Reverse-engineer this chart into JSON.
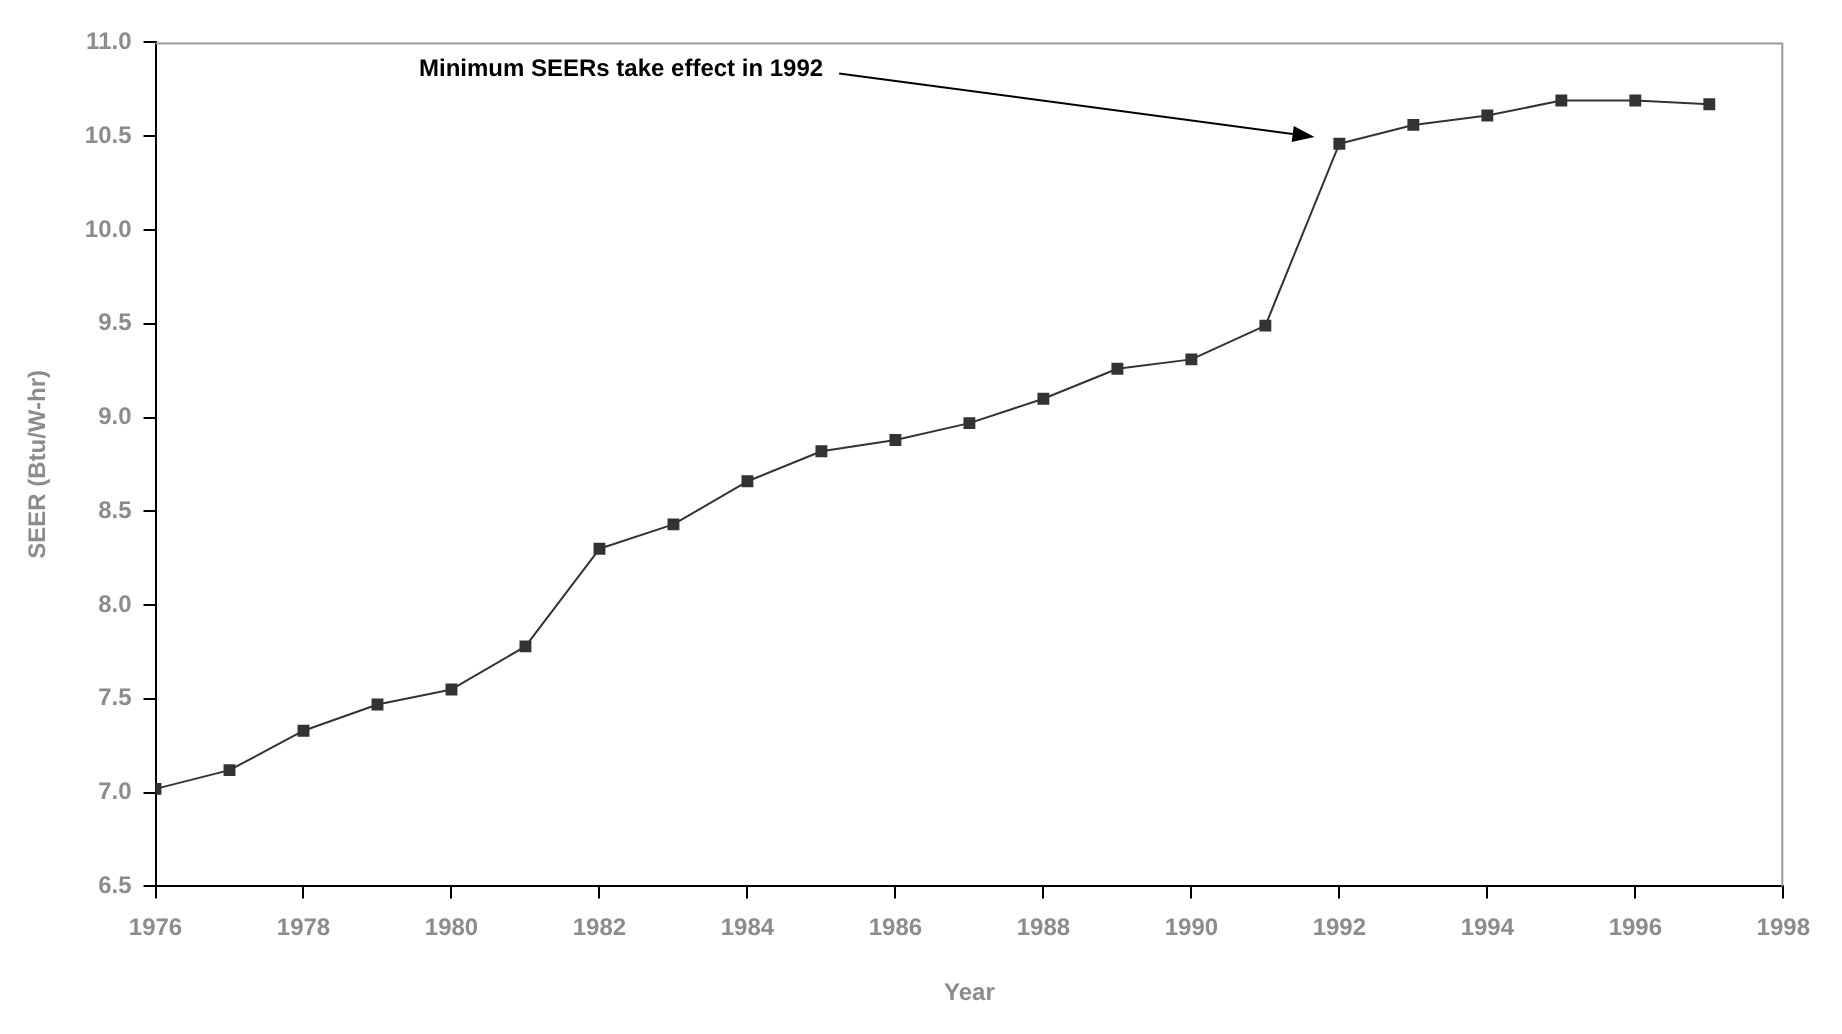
{
  "chart_data": {
    "type": "line",
    "xlabel": "Year",
    "ylabel": "SEER (Btu/W-hr)",
    "x": [
      1976,
      1977,
      1978,
      1979,
      1980,
      1981,
      1982,
      1983,
      1984,
      1985,
      1986,
      1987,
      1988,
      1989,
      1990,
      1991,
      1992,
      1993,
      1994,
      1995,
      1996,
      1997
    ],
    "series": [
      {
        "color": "#333333",
        "values": [
          7.02,
          7.12,
          7.33,
          7.47,
          7.55,
          7.78,
          8.3,
          8.43,
          8.66,
          8.82,
          8.88,
          8.97,
          9.1,
          9.26,
          9.31,
          9.49,
          10.46,
          10.56,
          10.61,
          10.69,
          10.69,
          10.67
        ]
      }
    ],
    "xlim": [
      1976,
      1998
    ],
    "xticks": [
      1976,
      1978,
      1980,
      1982,
      1984,
      1986,
      1988,
      1990,
      1992,
      1994,
      1996,
      1998
    ],
    "ylim": [
      6.5,
      11.0
    ],
    "yticks": [
      {
        "value": 6.5,
        "label": "6.5"
      },
      {
        "value": 7.0,
        "label": "7.0"
      },
      {
        "value": 7.5,
        "label": "7.5"
      },
      {
        "value": 8.0,
        "label": "8.0"
      },
      {
        "value": 8.5,
        "label": "8.5"
      },
      {
        "value": 9.0,
        "label": "9.0"
      },
      {
        "value": 9.5,
        "label": "9.5"
      },
      {
        "value": 10.0,
        "label": "10.0"
      },
      {
        "value": 10.5,
        "label": "10.5"
      },
      {
        "value": 11.0,
        "label": "11.0"
      }
    ],
    "annotations": [
      "Minimum SEERs take effect in 1992"
    ],
    "grid": false,
    "legend": false,
    "marker": "square",
    "line_style": "solid"
  }
}
